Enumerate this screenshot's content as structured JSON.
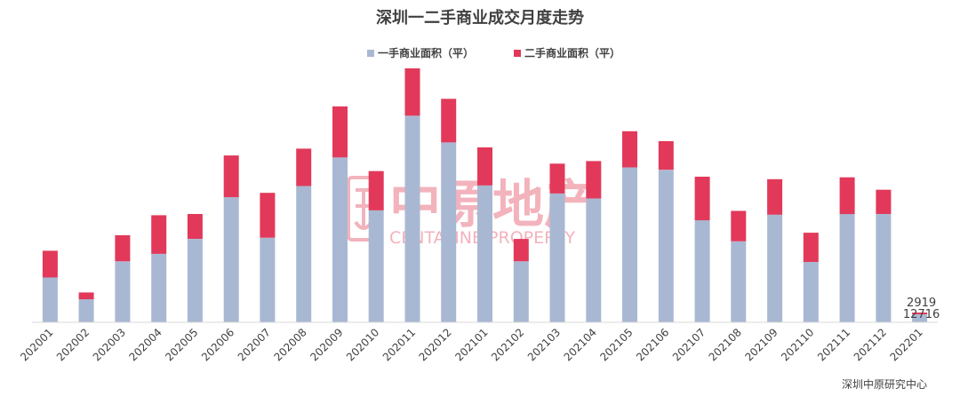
{
  "chart_data": {
    "type": "bar",
    "stacked": true,
    "title": "深圳一二手商业成交月度走势",
    "categories": [
      "202001",
      "202002",
      "202003",
      "202004",
      "202005",
      "202006",
      "202007",
      "202008",
      "202009",
      "202010",
      "202011",
      "202012",
      "202101",
      "202102",
      "202103",
      "202104",
      "202105",
      "202106",
      "202107",
      "202108",
      "202109",
      "202110",
      "202111",
      "202112",
      "202201"
    ],
    "series": [
      {
        "name": "一手商业面积（平）",
        "color": "#a9b8d2",
        "values": [
          72000,
          37000,
          98000,
          110000,
          134000,
          201000,
          136000,
          219000,
          265000,
          180000,
          332000,
          289000,
          220000,
          98000,
          207000,
          199000,
          249000,
          245000,
          164000,
          130000,
          173000,
          97000,
          174000,
          174000,
          12716
        ]
      },
      {
        "name": "二手商业面积（平）",
        "color": "#e2395a",
        "values": [
          43000,
          11000,
          42000,
          62000,
          40000,
          67000,
          72000,
          60000,
          82000,
          63000,
          76000,
          70000,
          61000,
          36000,
          48000,
          60000,
          58000,
          46000,
          70000,
          49000,
          57000,
          47000,
          59000,
          39000,
          2919
        ]
      }
    ],
    "data_labels": {
      "202201": [
        "2919",
        "12716"
      ]
    },
    "ylim": [
      0,
      420000
    ],
    "grid": false,
    "legend_position": "top-center"
  },
  "watermark": {
    "main_text": "中原地产",
    "sub_text": "CENTALINE PROPERTY"
  },
  "source": "深圳中原研究中心"
}
